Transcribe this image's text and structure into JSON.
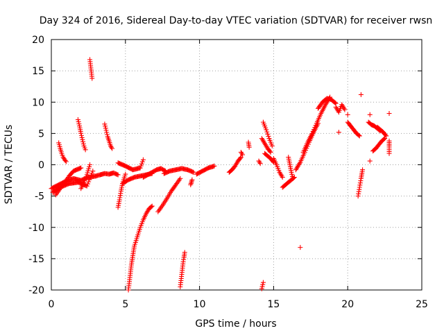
{
  "chart_data": {
    "type": "scatter",
    "title": "Day 324 of 2016, Sidereal Day-to-day VTEC variation (SDTVAR) for receiver rwsn",
    "xlabel": "GPS time / hours",
    "ylabel": "SDTVAR / TECUs",
    "xlim": [
      0,
      25
    ],
    "ylim": [
      -20,
      20
    ],
    "xticks": [
      0,
      5,
      10,
      15,
      20,
      25
    ],
    "yticks": [
      -20,
      -15,
      -10,
      -5,
      0,
      5,
      10,
      15,
      20
    ],
    "grid": true,
    "marker": "+",
    "colors": {
      "marker": "#ff0000",
      "grid": "#a0a0a0",
      "axis": "#000000"
    },
    "segments": [
      {
        "x": [
          0.0,
          0.5,
          1.0,
          1.5,
          2.0,
          2.5,
          3.0
        ],
        "y": [
          -3.8,
          -3.2,
          -2.6,
          -2.2,
          -2.5,
          -2.0,
          -1.8
        ]
      },
      {
        "x": [
          0.1,
          0.6,
          1.2,
          1.8,
          2.4,
          2.8
        ],
        "y": [
          -4.4,
          -3.6,
          -3.0,
          -2.8,
          -3.4,
          -1.0
        ]
      },
      {
        "x": [
          0.5,
          0.6,
          0.7,
          0.8,
          0.9,
          1.0
        ],
        "y": [
          3.5,
          2.6,
          1.8,
          1.2,
          0.8,
          0.5
        ]
      },
      {
        "x": [
          0.3,
          0.6,
          0.9,
          1.2,
          1.5,
          2.0
        ],
        "y": [
          -4.8,
          -3.8,
          -2.8,
          -1.8,
          -1.0,
          -0.5
        ]
      },
      {
        "x": [
          1.8,
          1.9,
          2.0,
          2.1,
          2.2,
          2.3
        ],
        "y": [
          7.2,
          6.2,
          5.0,
          4.0,
          3.0,
          2.4
        ]
      },
      {
        "x": [
          2.0,
          2.2,
          2.4,
          2.6
        ],
        "y": [
          -3.8,
          -2.8,
          -1.6,
          0.0
        ]
      },
      {
        "x": [
          2.6,
          2.65,
          2.7,
          2.75
        ],
        "y": [
          16.8,
          15.8,
          14.8,
          13.8
        ]
      },
      {
        "x": [
          3.0,
          3.3,
          3.6,
          3.9,
          4.2,
          4.5
        ],
        "y": [
          -1.8,
          -1.6,
          -1.4,
          -1.5,
          -1.3,
          -1.6
        ]
      },
      {
        "x": [
          3.6,
          3.7,
          3.8,
          3.9,
          4.0,
          4.1
        ],
        "y": [
          6.5,
          5.5,
          4.5,
          3.8,
          3.0,
          2.6
        ]
      },
      {
        "x": [
          4.5,
          4.6,
          4.7,
          4.8,
          5.0
        ],
        "y": [
          -6.8,
          -5.6,
          -4.2,
          -3.0,
          -1.5
        ]
      },
      {
        "x": [
          4.5,
          5.0,
          5.5,
          6.0,
          6.2
        ],
        "y": [
          0.3,
          -0.2,
          -0.8,
          -0.5,
          0.8
        ]
      },
      {
        "x": [
          4.8,
          5.2,
          5.6,
          6.0,
          6.4,
          6.8
        ],
        "y": [
          -3.0,
          -2.4,
          -2.0,
          -1.8,
          -1.6,
          -1.4
        ]
      },
      {
        "x": [
          5.2,
          5.3,
          5.4,
          5.5,
          5.6,
          5.8,
          6.0,
          6.2,
          6.4,
          6.6,
          6.8
        ],
        "y": [
          -20.0,
          -18.0,
          -16.0,
          -14.5,
          -13.0,
          -11.5,
          -10.0,
          -8.8,
          -7.8,
          -7.0,
          -6.6
        ]
      },
      {
        "x": [
          6.2,
          6.5,
          6.8,
          7.1,
          7.4,
          7.7
        ],
        "y": [
          -2.0,
          -1.6,
          -1.2,
          -0.8,
          -0.6,
          -1.0
        ]
      },
      {
        "x": [
          7.2,
          7.5,
          7.8,
          8.1,
          8.4,
          8.7
        ],
        "y": [
          -7.5,
          -6.5,
          -5.4,
          -4.2,
          -3.2,
          -2.2
        ]
      },
      {
        "x": [
          7.6,
          8.0,
          8.4,
          8.8,
          9.2,
          9.6
        ],
        "y": [
          -1.4,
          -1.0,
          -0.8,
          -0.6,
          -0.8,
          -1.2
        ]
      },
      {
        "x": [
          8.7,
          8.75,
          8.8,
          8.85,
          8.9,
          8.95,
          9.0
        ],
        "y": [
          -19.5,
          -18.5,
          -17.5,
          -16.5,
          -15.5,
          -14.8,
          -14.0
        ]
      },
      {
        "x": [
          9.4,
          9.45,
          9.5
        ],
        "y": [
          -3.2,
          -2.8,
          -2.4
        ]
      },
      {
        "x": [
          9.8,
          10.2,
          10.6,
          11.0
        ],
        "y": [
          -1.5,
          -1.0,
          -0.5,
          -0.2
        ]
      },
      {
        "x": [
          12.0,
          12.2,
          12.4,
          12.6,
          12.8
        ],
        "y": [
          -1.2,
          -0.8,
          -0.2,
          0.6,
          1.2
        ]
      },
      {
        "x": [
          12.8,
          12.9
        ],
        "y": [
          2.0,
          1.6
        ]
      },
      {
        "x": [
          13.3,
          13.35
        ],
        "y": [
          3.6,
          2.8
        ]
      },
      {
        "x": [
          14.0,
          14.1
        ],
        "y": [
          0.6,
          0.2
        ]
      },
      {
        "x": [
          14.2,
          14.3
        ],
        "y": [
          -19.8,
          -18.8
        ]
      },
      {
        "x": [
          14.3,
          14.5,
          14.7,
          14.9
        ],
        "y": [
          6.8,
          5.6,
          4.2,
          3.0
        ]
      },
      {
        "x": [
          14.2,
          14.4,
          14.6,
          14.8
        ],
        "y": [
          4.2,
          3.4,
          2.6,
          2.0
        ]
      },
      {
        "x": [
          14.4,
          14.6,
          14.8,
          15.0
        ],
        "y": [
          1.8,
          1.4,
          1.0,
          0.4
        ]
      },
      {
        "x": [
          15.0,
          15.2,
          15.4,
          15.6
        ],
        "y": [
          1.0,
          0.0,
          -1.2,
          -2.0
        ]
      },
      {
        "x": [
          15.6,
          15.8,
          16.0,
          16.2,
          16.4
        ],
        "y": [
          -3.6,
          -3.2,
          -2.8,
          -2.4,
          -2.0
        ]
      },
      {
        "x": [
          16.0,
          16.1,
          16.2,
          16.3
        ],
        "y": [
          1.2,
          0.0,
          -1.2,
          -2.2
        ]
      },
      {
        "x": [
          16.8
        ],
        "y": [
          -13.2
        ]
      },
      {
        "x": [
          16.5,
          16.8,
          17.1,
          17.4,
          17.7,
          18.0
        ],
        "y": [
          -0.8,
          0.4,
          2.0,
          3.6,
          5.2,
          6.6
        ]
      },
      {
        "x": [
          17.0,
          17.3,
          17.6,
          17.9,
          18.2,
          18.5,
          18.8
        ],
        "y": [
          2.0,
          3.6,
          5.0,
          6.6,
          8.2,
          9.6,
          10.8
        ]
      },
      {
        "x": [
          18.0,
          18.3,
          18.6,
          18.9,
          19.2
        ],
        "y": [
          9.0,
          10.0,
          10.6,
          10.4,
          9.8
        ]
      },
      {
        "x": [
          19.2,
          19.4,
          19.6,
          19.8
        ],
        "y": [
          9.2,
          8.4,
          9.6,
          8.8
        ]
      },
      {
        "x": [
          19.4
        ],
        "y": [
          5.2
        ]
      },
      {
        "x": [
          20.0,
          20.2,
          20.4,
          20.6,
          20.8
        ],
        "y": [
          6.8,
          6.2,
          5.6,
          5.0,
          4.6
        ]
      },
      {
        "x": [
          20.0
        ],
        "y": [
          8.0
        ]
      },
      {
        "x": [
          20.7,
          20.8,
          20.9,
          21.0
        ],
        "y": [
          -5.0,
          -3.6,
          -2.2,
          -0.8
        ]
      },
      {
        "x": [
          20.9
        ],
        "y": [
          11.2
        ]
      },
      {
        "x": [
          21.4,
          21.6,
          21.8,
          22.0,
          22.2
        ],
        "y": [
          6.8,
          6.4,
          6.2,
          5.8,
          5.4
        ]
      },
      {
        "x": [
          21.5
        ],
        "y": [
          8.0
        ]
      },
      {
        "x": [
          21.7,
          21.9,
          22.1,
          22.3,
          22.5
        ],
        "y": [
          2.2,
          2.6,
          3.2,
          3.8,
          4.2
        ]
      },
      {
        "x": [
          22.0,
          22.2,
          22.4,
          22.6
        ],
        "y": [
          6.0,
          5.6,
          5.2,
          4.6
        ]
      },
      {
        "x": [
          21.5
        ],
        "y": [
          0.6
        ]
      },
      {
        "x": [
          22.8,
          22.8,
          22.8,
          22.8
        ],
        "y": [
          3.8,
          3.0,
          2.4,
          1.8
        ]
      },
      {
        "x": [
          22.8
        ],
        "y": [
          8.2
        ]
      }
    ]
  }
}
